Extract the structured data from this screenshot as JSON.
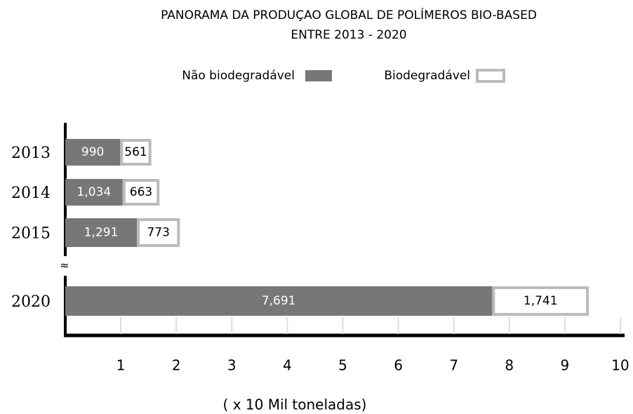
{
  "chart_data": {
    "type": "bar",
    "orientation": "horizontal",
    "stacked": true,
    "title": [
      "PANORAMA DA PRODUÇAO GLOBAL DE POLÍMEROS BIO-BASED",
      "ENTRE 2013 - 2020"
    ],
    "xlabel": "( x 10  Mil  toneladas)",
    "categories": [
      "2013",
      "2014",
      "2015",
      "2020"
    ],
    "series": [
      {
        "name": "Não biodegradável",
        "color": "#777777",
        "values": [
          0.99,
          1.034,
          1.291,
          7.691
        ],
        "value_labels": [
          "990",
          "1,034",
          "1,291",
          "7,691"
        ]
      },
      {
        "name": "Biodegradável",
        "color": "#ffffff",
        "values": [
          0.561,
          0.663,
          0.773,
          1.741
        ],
        "value_labels": [
          "561",
          "663",
          "773",
          "1,741"
        ]
      }
    ],
    "xlim": [
      0,
      10
    ],
    "xticks": [
      1,
      2,
      3,
      4,
      5,
      6,
      7,
      8,
      9,
      10
    ],
    "legend": "top"
  }
}
